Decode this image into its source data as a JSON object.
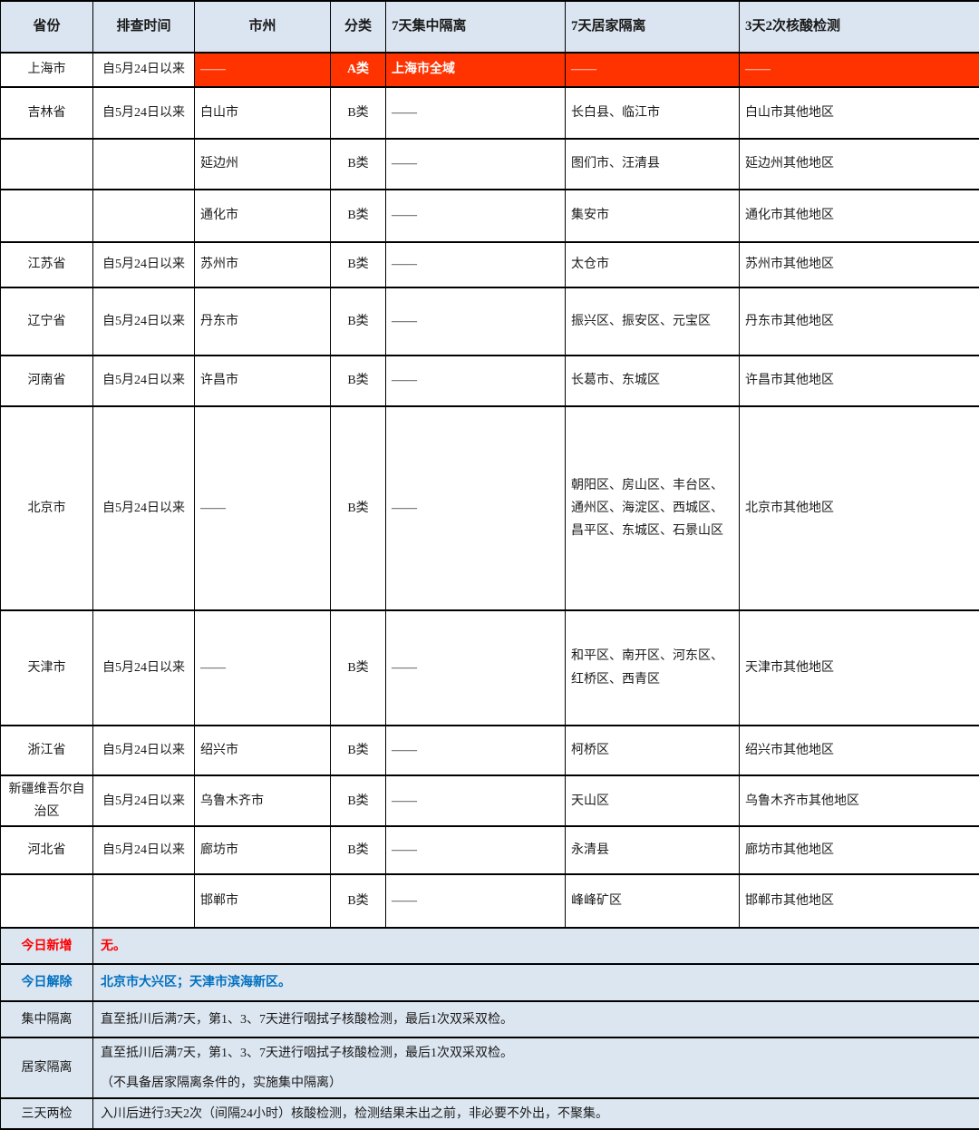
{
  "colors": {
    "header_bg": "#dbe5f1",
    "note_bg": "#dce6f1",
    "alert_bg": "#ff3300",
    "alert_text": "#ffffff",
    "new_today_text": "#ff0000",
    "lifted_today_text": "#0070c0",
    "border": "#000000"
  },
  "table": {
    "headers": [
      "省份",
      "排查时间",
      "市州",
      "分类",
      "7天集中隔离",
      "7天居家隔离",
      "3天2次核酸检测"
    ],
    "rows": [
      {
        "alert": true,
        "cells": [
          {
            "t": "上海市"
          },
          {
            "t": "自5月24日以来"
          },
          {
            "t": "——",
            "red": true
          },
          {
            "t": "A类",
            "red": true,
            "bold": true
          },
          {
            "t": "上海市全域",
            "red": true,
            "bold": true
          },
          {
            "t": "——",
            "red": true
          },
          {
            "t": "——",
            "red": true
          }
        ]
      },
      {
        "cells": [
          {
            "t": "吉林省"
          },
          {
            "t": "自5月24日以来"
          },
          {
            "t": "白山市"
          },
          {
            "t": "B类"
          },
          {
            "t": "——"
          },
          {
            "t": "长白县、临江市"
          },
          {
            "t": "白山市其他地区"
          }
        ]
      },
      {
        "cells": [
          {
            "t": ""
          },
          {
            "t": ""
          },
          {
            "t": "延边州"
          },
          {
            "t": "B类"
          },
          {
            "t": "——"
          },
          {
            "t": "图们市、汪清县"
          },
          {
            "t": "延边州其他地区"
          }
        ]
      },
      {
        "cells": [
          {
            "t": ""
          },
          {
            "t": ""
          },
          {
            "t": "通化市"
          },
          {
            "t": "B类"
          },
          {
            "t": "——"
          },
          {
            "t": "集安市"
          },
          {
            "t": "通化市其他地区"
          }
        ]
      },
      {
        "cells": [
          {
            "t": "江苏省"
          },
          {
            "t": "自5月24日以来"
          },
          {
            "t": "苏州市"
          },
          {
            "t": "B类"
          },
          {
            "t": "——"
          },
          {
            "t": "太仓市"
          },
          {
            "t": "苏州市其他地区"
          }
        ]
      },
      {
        "cells": [
          {
            "t": "辽宁省"
          },
          {
            "t": "自5月24日以来"
          },
          {
            "t": "丹东市"
          },
          {
            "t": "B类"
          },
          {
            "t": "——"
          },
          {
            "t": "振兴区、振安区、元宝区"
          },
          {
            "t": "丹东市其他地区"
          }
        ]
      },
      {
        "cells": [
          {
            "t": "河南省"
          },
          {
            "t": "自5月24日以来"
          },
          {
            "t": "许昌市"
          },
          {
            "t": "B类"
          },
          {
            "t": "——"
          },
          {
            "t": "长葛市、东城区"
          },
          {
            "t": "许昌市其他地区"
          }
        ]
      },
      {
        "cells": [
          {
            "t": "北京市"
          },
          {
            "t": "自5月24日以来"
          },
          {
            "t": "——"
          },
          {
            "t": "B类"
          },
          {
            "t": "——"
          },
          {
            "t": "朝阳区、房山区、丰台区、通州区、海淀区、西城区、昌平区、东城区、石景山区"
          },
          {
            "t": "北京市其他地区"
          }
        ]
      },
      {
        "cells": [
          {
            "t": "天津市"
          },
          {
            "t": "自5月24日以来"
          },
          {
            "t": "——"
          },
          {
            "t": "B类"
          },
          {
            "t": "——"
          },
          {
            "t": "和平区、南开区、河东区、红桥区、西青区"
          },
          {
            "t": "天津市其他地区"
          }
        ]
      },
      {
        "cells": [
          {
            "t": "浙江省"
          },
          {
            "t": "自5月24日以来"
          },
          {
            "t": "绍兴市"
          },
          {
            "t": "B类"
          },
          {
            "t": "——"
          },
          {
            "t": "柯桥区"
          },
          {
            "t": "绍兴市其他地区"
          }
        ]
      },
      {
        "cells": [
          {
            "t": "新疆维吾尔自治区"
          },
          {
            "t": "自5月24日以来"
          },
          {
            "t": "乌鲁木齐市"
          },
          {
            "t": "B类"
          },
          {
            "t": "——"
          },
          {
            "t": "天山区"
          },
          {
            "t": "乌鲁木齐市其他地区"
          }
        ]
      },
      {
        "cells": [
          {
            "t": "河北省"
          },
          {
            "t": "自5月24日以来"
          },
          {
            "t": "廊坊市"
          },
          {
            "t": "B类"
          },
          {
            "t": "——"
          },
          {
            "t": "永清县"
          },
          {
            "t": "廊坊市其他地区"
          }
        ]
      },
      {
        "cells": [
          {
            "t": ""
          },
          {
            "t": ""
          },
          {
            "t": "邯郸市"
          },
          {
            "t": "B类"
          },
          {
            "t": "——"
          },
          {
            "t": "峰峰矿区"
          },
          {
            "t": "邯郸市其他地区"
          }
        ]
      }
    ],
    "notes": [
      {
        "label": "今日新增",
        "lines": [
          "无。"
        ],
        "style": "red-text"
      },
      {
        "label": "今日解除",
        "lines": [
          "北京市大兴区；天津市滨海新区。"
        ],
        "style": "blue-text"
      },
      {
        "label": "集中隔离",
        "lines": [
          "直至抵川后满7天，第1、3、7天进行咽拭子核酸检测，最后1次双采双检。"
        ],
        "style": ""
      },
      {
        "label": "居家隔离",
        "lines": [
          "直至抵川后满7天，第1、3、7天进行咽拭子核酸检测，最后1次双采双检。",
          "（不具备居家隔离条件的，实施集中隔离）"
        ],
        "style": ""
      },
      {
        "label": "三天两检",
        "lines": [
          "入川后进行3天2次（间隔24小时）核酸检测，检测结果未出之前，非必要不外出，不聚集。"
        ],
        "style": ""
      }
    ]
  }
}
